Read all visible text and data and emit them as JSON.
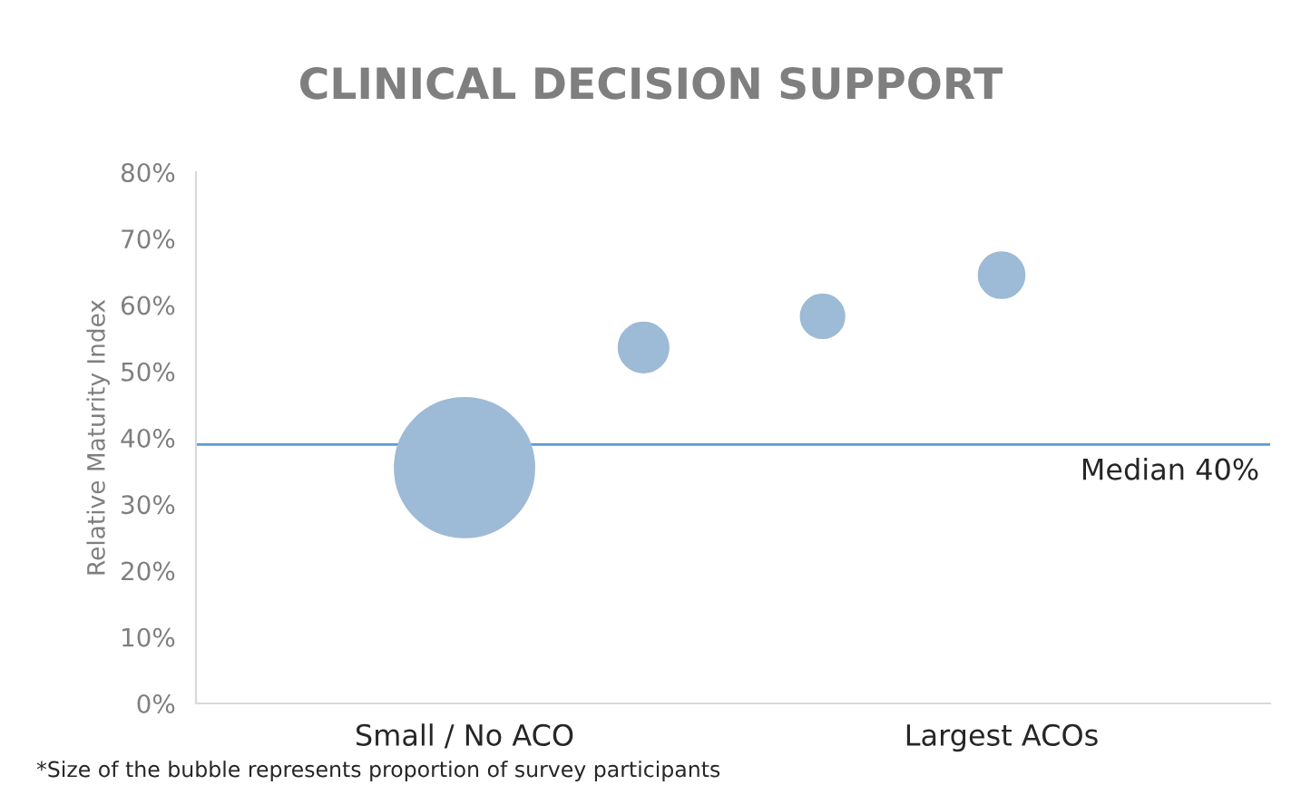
{
  "chart_data": {
    "type": "bubble",
    "title": "CLINICAL DECISION SUPPORT",
    "ylabel": "Relative Maturity Index",
    "categories": [
      null,
      "Small / No ACO",
      null,
      null,
      "Largest ACOs",
      null
    ],
    "values": [
      null,
      35.5,
      53.6,
      58.3,
      64.5,
      null
    ],
    "sizes": [
      null,
      1,
      0.13,
      0.1,
      0.11,
      null
    ],
    "color": "#9dbad6",
    "ylim": [
      0,
      80
    ],
    "yticks": [
      {
        "value": 0,
        "label": "0%"
      },
      {
        "value": 10,
        "label": "10%"
      },
      {
        "value": 20,
        "label": "20%"
      },
      {
        "value": 30,
        "label": "30%"
      },
      {
        "value": 40,
        "label": "40%"
      },
      {
        "value": 50,
        "label": "50%"
      },
      {
        "value": 60,
        "label": "60%"
      },
      {
        "value": 70,
        "label": "70%"
      },
      {
        "value": 80,
        "label": "80%"
      }
    ],
    "ref_lines": [
      {
        "axis": "y",
        "value": 39,
        "label": "Median 40%",
        "color": "#5b9bd5"
      }
    ],
    "grid": false,
    "annotations": [
      "*Size of the bubble represents proportion of survey participants"
    ]
  }
}
